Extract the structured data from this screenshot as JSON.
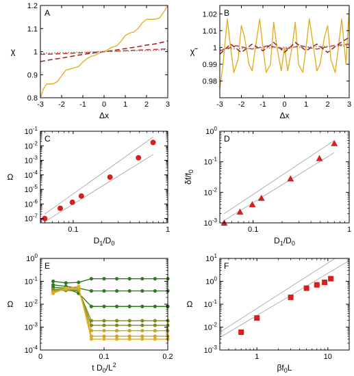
{
  "colors": {
    "yellow": "#e3ae22",
    "red_dark": "#9c1c1c",
    "red_mid": "#c8302a",
    "marker_red": "#d42020",
    "green": "#2f7a1e",
    "grey": "#9a9a9a"
  },
  "chart_data": [
    {
      "panel": "A",
      "type": "line",
      "ylabel": "χ",
      "xlabel": "Δx",
      "xlim": [
        -3,
        3
      ],
      "ylim": [
        0.8,
        1.2
      ],
      "xticks": [
        -3,
        -2,
        -1,
        0,
        1,
        2,
        3
      ],
      "yticks": [
        0.8,
        0.9,
        1,
        1.1,
        1.2
      ],
      "xtick_labels": [
        "-3",
        "-2",
        "-1",
        "0",
        "1",
        "2",
        "3"
      ],
      "ytick_labels": [
        "0.8",
        "0.9",
        "1",
        "1.1",
        "1.2"
      ],
      "scale": "linear",
      "series": [
        {
          "style": "solid",
          "color": "yellow",
          "x": [
            -3,
            -2.85,
            -2.7,
            -2.55,
            -2.4,
            -2.2,
            -2.0,
            -1.8,
            -1.6,
            -1.4,
            -1.2,
            -1.0,
            -0.8,
            -0.6,
            -0.4,
            -0.2,
            0,
            0.2,
            0.4,
            0.6,
            0.8,
            1.0,
            1.2,
            1.4,
            1.6,
            1.8,
            2.0,
            2.2,
            2.4,
            2.6,
            2.8,
            3.0
          ],
          "y": [
            0.8,
            0.84,
            0.86,
            0.86,
            0.86,
            0.87,
            0.895,
            0.92,
            0.925,
            0.93,
            0.935,
            0.955,
            0.97,
            0.98,
            0.985,
            0.995,
            1.0,
            1.01,
            1.02,
            1.025,
            1.045,
            1.07,
            1.08,
            1.085,
            1.1,
            1.125,
            1.14,
            1.14,
            1.14,
            1.145,
            1.17,
            1.2
          ]
        },
        {
          "style": "dashed",
          "color": "red_dark",
          "x": [
            -3,
            -2.5,
            -2,
            -1.5,
            -1,
            -0.5,
            0,
            0.5,
            1,
            1.5,
            2,
            2.5,
            3
          ],
          "y": [
            0.957,
            0.965,
            0.972,
            0.98,
            0.988,
            0.994,
            1.0,
            1.006,
            1.013,
            1.02,
            1.028,
            1.035,
            1.046
          ]
        },
        {
          "style": "dashed",
          "color": "red_mid",
          "x": [
            -3,
            -2,
            -1,
            0,
            1,
            2,
            3
          ],
          "y": [
            0.988,
            0.991,
            0.995,
            1.0,
            1.004,
            1.008,
            1.012
          ]
        },
        {
          "style": "dotted",
          "color": "grey",
          "x": [
            -3,
            3
          ],
          "y": [
            0.993,
            1.007
          ]
        }
      ]
    },
    {
      "panel": "B",
      "type": "line",
      "ylabel": "χ̃",
      "xlabel": "Δx",
      "xlim": [
        -3,
        3
      ],
      "ylim": [
        0.97,
        1.025
      ],
      "xticks": [
        -3,
        -2,
        -1,
        0,
        1,
        2,
        3
      ],
      "yticks": [
        0.98,
        0.99,
        1,
        1.01,
        1.02
      ],
      "xtick_labels": [
        "-3",
        "-2",
        "-1",
        "0",
        "1",
        "2",
        "3"
      ],
      "ytick_labels": [
        "0.98",
        "0.99",
        "1",
        "1.01",
        "1.02"
      ],
      "scale": "linear",
      "series": [
        {
          "style": "solid",
          "color": "yellow",
          "x": [
            -3,
            -2.85,
            -2.65,
            -2.5,
            -2.35,
            -2.15,
            -2.0,
            -1.85,
            -1.65,
            -1.5,
            -1.35,
            -1.15,
            -1.0,
            -0.85,
            -0.65,
            -0.5,
            -0.35,
            -0.15,
            0,
            0.15,
            0.35,
            0.5,
            0.65,
            0.85,
            1.0,
            1.15,
            1.35,
            1.5,
            1.65,
            1.85,
            2.0,
            2.15,
            2.35,
            2.5,
            2.65,
            2.85,
            3.0
          ],
          "y": [
            0.975,
            0.99,
            1.017,
            1.0,
            0.985,
            0.993,
            1.013,
            1.006,
            0.99,
            0.986,
            1.0,
            1.017,
            1.0,
            0.985,
            0.99,
            1.015,
            1.0,
            0.986,
            1.0,
            0.986,
            1.0,
            1.015,
            0.99,
            0.985,
            1.0,
            1.017,
            1.0,
            0.986,
            0.99,
            1.006,
            1.013,
            0.993,
            0.985,
            1.0,
            1.017,
            0.99,
            1.024
          ]
        },
        {
          "style": "dashed",
          "color": "red_dark",
          "x": [
            -3,
            -2.5,
            -2,
            -1.5,
            -1,
            -0.5,
            0,
            0.5,
            1,
            1.5,
            2,
            2.5,
            3
          ],
          "y": [
            0.996,
            1.002,
            0.997,
            1.002,
            0.998,
            1.003,
            0.997,
            1.003,
            0.998,
            1.002,
            0.997,
            1.002,
            1.006
          ]
        },
        {
          "style": "dashed",
          "color": "red_mid",
          "x": [
            -3,
            -2.25,
            -1.5,
            -0.75,
            0,
            0.75,
            1.5,
            2.25,
            3
          ],
          "y": [
            0.998,
            1.001,
            0.999,
            1.001,
            0.999,
            1.001,
            0.999,
            1.001,
            1.002
          ]
        },
        {
          "style": "dotted",
          "color": "grey",
          "x": [
            -3,
            3
          ],
          "y": [
            0.999,
            1.001
          ]
        }
      ]
    },
    {
      "panel": "C",
      "type": "scatter",
      "ylabel": "Ω",
      "xlabel": "D1/D0",
      "xlabel_main": "D",
      "xlabel_sub1": "1",
      "xlabel_mid": "/D",
      "xlabel_sub2": "0",
      "xscale": "log",
      "yscale": "log",
      "xlim": [
        0.045,
        1
      ],
      "ylim": [
        5e-08,
        0.1
      ],
      "xticks": [
        0.1,
        1
      ],
      "xtick_labels": [
        "0.1",
        "1"
      ],
      "yticks": [
        1e-07,
        1e-06,
        1e-05,
        0.0001,
        0.001,
        0.01,
        0.1
      ],
      "ytick_labels_exp": [
        "-7",
        "-6",
        "-5",
        "-4",
        "-3",
        "-2",
        "-1"
      ],
      "marker": "circle",
      "points": {
        "x": [
          0.05,
          0.073,
          0.098,
          0.122,
          0.245,
          0.49,
          0.7
        ],
        "y": [
          1e-07,
          5e-07,
          1.3e-06,
          3.5e-06,
          7e-05,
          0.0015,
          0.017
        ]
      },
      "guide_lines": [
        {
          "x": [
            0.05,
            0.7
          ],
          "y": [
            2e-07,
            0.04
          ]
        },
        {
          "x": [
            0.05,
            0.7
          ],
          "y": [
            6e-08,
            0.0025
          ]
        }
      ]
    },
    {
      "panel": "D",
      "type": "scatter",
      "ylabel": "δf/f0",
      "ylabel_main": "δf/f",
      "ylabel_sub": "0",
      "xlabel": "D1/D0",
      "xlabel_main": "D",
      "xlabel_sub1": "1",
      "xlabel_mid": "/D",
      "xlabel_sub2": "0",
      "xscale": "log",
      "yscale": "log",
      "xlim": [
        0.045,
        1
      ],
      "ylim": [
        0.001,
        1
      ],
      "xticks": [
        0.1,
        1
      ],
      "xtick_labels": [
        "0.1",
        "1"
      ],
      "yticks": [
        0.001,
        0.01,
        0.1,
        1
      ],
      "ytick_labels_exp": [
        "-3",
        "-2",
        "-1",
        "0"
      ],
      "marker": "triangle",
      "points": {
        "x": [
          0.05,
          0.073,
          0.098,
          0.122,
          0.245,
          0.49,
          0.7
        ],
        "y": [
          0.001,
          0.0023,
          0.004,
          0.0065,
          0.028,
          0.13,
          0.4
        ]
      },
      "guide_lines": [
        {
          "x": [
            0.05,
            0.7
          ],
          "y": [
            0.002,
            0.5
          ]
        },
        {
          "x": [
            0.05,
            0.7
          ],
          "y": [
            0.0012,
            0.2
          ]
        }
      ]
    },
    {
      "panel": "E",
      "type": "line",
      "ylabel": "Ω",
      "xlabel": "t D0/L2",
      "xlabel_main": "t D",
      "xlabel_sub": "0",
      "xlabel_mid": "/L",
      "xlabel_sup": "2",
      "xscale": "linear",
      "yscale": "log",
      "xlim": [
        0,
        0.2
      ],
      "ylim": [
        0.0001,
        1
      ],
      "xticks": [
        0,
        0.1,
        0.2
      ],
      "xtick_labels": [
        "0",
        "0.1",
        "0.2"
      ],
      "yticks": [
        0.0001,
        0.001,
        0.01,
        0.1,
        1
      ],
      "ytick_labels_exp": [
        "-4",
        "-3",
        "-2",
        "-1",
        "0"
      ],
      "x": [
        0.02,
        0.04,
        0.06,
        0.08,
        0.1,
        0.12,
        0.14,
        0.16,
        0.18,
        0.2
      ],
      "series": [
        {
          "color": "green",
          "values": [
            0.1,
            0.085,
            0.09,
            0.13,
            0.13,
            0.13,
            0.13,
            0.13,
            0.13,
            0.13
          ]
        },
        {
          "color": "green",
          "values": [
            0.07,
            0.06,
            0.05,
            0.038,
            0.038,
            0.038,
            0.038,
            0.038,
            0.038,
            0.038
          ]
        },
        {
          "color": "green",
          "values": [
            0.055,
            0.05,
            0.03,
            0.008,
            0.008,
            0.008,
            0.008,
            0.008,
            0.008,
            0.008
          ]
        },
        {
          "color": "olive",
          "values": [
            0.045,
            0.045,
            0.04,
            0.0019,
            0.0019,
            0.0019,
            0.0019,
            0.0019,
            0.0019,
            0.0019
          ]
        },
        {
          "color": "olive",
          "values": [
            0.04,
            0.04,
            0.038,
            0.0012,
            0.0012,
            0.0012,
            0.0012,
            0.0012,
            0.0012,
            0.0012
          ]
        },
        {
          "color": "gold",
          "values": [
            0.035,
            0.045,
            0.045,
            0.0007,
            0.0007,
            0.0007,
            0.0007,
            0.0007,
            0.0007,
            0.0007
          ]
        },
        {
          "color": "gold",
          "values": [
            0.03,
            0.05,
            0.05,
            0.0004,
            0.0004,
            0.0004,
            0.0004,
            0.0004,
            0.0004,
            0.0004
          ]
        },
        {
          "color": "yellow",
          "values": [
            0.03,
            0.048,
            0.06,
            0.0003,
            0.0003,
            0.0003,
            0.0003,
            0.0003,
            0.0003,
            0.0003
          ]
        }
      ]
    },
    {
      "panel": "F",
      "type": "scatter",
      "ylabel": "Ω",
      "xlabel": "βf0L",
      "xlabel_main": "βf",
      "xlabel_sub": "0",
      "xlabel_end": "L",
      "xscale": "log",
      "yscale": "log",
      "xlim": [
        0.3,
        20
      ],
      "ylim": [
        0.001,
        10
      ],
      "xticks": [
        1,
        10
      ],
      "xtick_labels": [
        "1",
        "10"
      ],
      "yticks": [
        0.001,
        0.01,
        0.1,
        1,
        10
      ],
      "ytick_labels_exp": [
        "-3",
        "-2",
        "-1",
        "0",
        "1"
      ],
      "marker": "square",
      "points": {
        "x": [
          0.6,
          1.0,
          3.0,
          5.0,
          7.0,
          9.0,
          11.0
        ],
        "y": [
          0.006,
          0.025,
          0.2,
          0.5,
          0.7,
          0.9,
          1.3
        ]
      },
      "guide_lines": [
        {
          "x": [
            0.3,
            20
          ],
          "y": [
            0.006,
            25
          ]
        },
        {
          "x": [
            0.3,
            20
          ],
          "y": [
            0.0035,
            8
          ]
        }
      ]
    }
  ]
}
